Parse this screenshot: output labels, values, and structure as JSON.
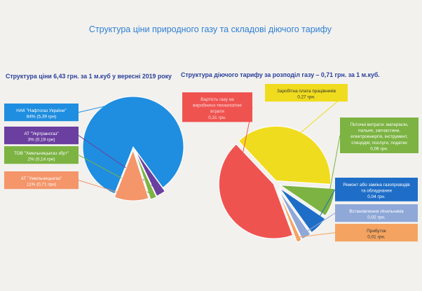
{
  "title": "Структура ціни природного газу та складові діючого тарифу",
  "chart_data": [
    {
      "type": "pie",
      "title": "Структура ціни 6,43 грн. за 1 м.куб у вересні 2019 року",
      "slices": [
        {
          "label": "НАК \"Нафтогаз України\"",
          "detail": "84% (5,39 грн)",
          "value": 84,
          "color": "#1f8ee0"
        },
        {
          "label": "АТ \"Укртрансгаз\"",
          "detail": "3% (0,19 грн)",
          "value": 3,
          "color": "#6b3fa0"
        },
        {
          "label": "ТОВ \"Хмельницькгаз збут\"",
          "detail": "2% (0,14 грн)",
          "value": 2,
          "color": "#7cb342"
        },
        {
          "label": "АТ \"Хмельницькгаз\"",
          "detail": "11% (0,71 грн)",
          "value": 11,
          "color": "#f4956a"
        }
      ]
    },
    {
      "type": "pie",
      "title": "Структура діючого тарифу за розподіл газу – 0,71 грн. за 1 м.куб.",
      "slices": [
        {
          "label": "Заробітна плата працівників",
          "detail": "0,27 грн.",
          "value": 0.27,
          "color": "#f0dc1e"
        },
        {
          "label": "Поточні витрати: матеріали, пальне, запчастини, електроенергія, інструмент, спецодяг, послуги, податки",
          "detail": "0,06 грн.",
          "value": 0.06,
          "color": "#7cb342"
        },
        {
          "label": "Ремонт або заміна газопроводів та обладнання",
          "detail": "0,04 грн.",
          "value": 0.04,
          "color": "#1e6ec8"
        },
        {
          "label": "Встановлення лічильників",
          "detail": "0,02 грн.",
          "value": 0.02,
          "color": "#8fa8d8"
        },
        {
          "label": "Прибуток",
          "detail": "0,01 грн.",
          "value": 0.01,
          "color": "#f4a460"
        },
        {
          "label": "Вартість газу на виробничо-технологічні втрати",
          "detail": "0,31 грн.",
          "value": 0.31,
          "color": "#ef5350"
        }
      ]
    }
  ]
}
